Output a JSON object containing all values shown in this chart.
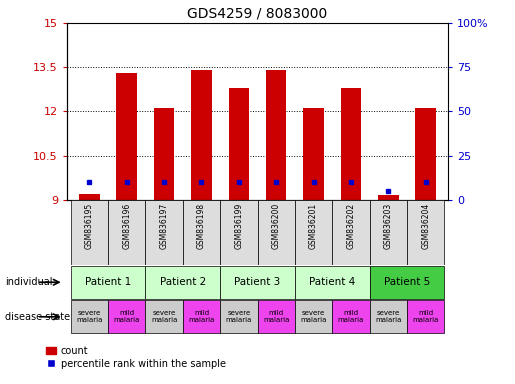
{
  "title": "GDS4259 / 8083000",
  "samples": [
    "GSM836195",
    "GSM836196",
    "GSM836197",
    "GSM836198",
    "GSM836199",
    "GSM836200",
    "GSM836201",
    "GSM836202",
    "GSM836203",
    "GSM836204"
  ],
  "red_values": [
    9.2,
    13.3,
    12.1,
    13.4,
    12.8,
    13.4,
    12.1,
    12.8,
    9.15,
    12.1
  ],
  "blue_percentile": [
    10,
    10,
    10,
    10,
    10,
    10,
    10,
    10,
    5,
    10
  ],
  "ylim_left": [
    9,
    15
  ],
  "ylim_right": [
    0,
    100
  ],
  "yticks_left": [
    9,
    10.5,
    12,
    13.5,
    15
  ],
  "yticks_right": [
    0,
    25,
    50,
    75,
    100
  ],
  "ytick_labels_left": [
    "9",
    "10.5",
    "12",
    "13.5",
    "15"
  ],
  "ytick_labels_right": [
    "0",
    "25",
    "50",
    "75",
    "100%"
  ],
  "patients": [
    {
      "label": "Patient 1",
      "cols": [
        0,
        1
      ],
      "color": "#ccffcc"
    },
    {
      "label": "Patient 2",
      "cols": [
        2,
        3
      ],
      "color": "#ccffcc"
    },
    {
      "label": "Patient 3",
      "cols": [
        4,
        5
      ],
      "color": "#ccffcc"
    },
    {
      "label": "Patient 4",
      "cols": [
        6,
        7
      ],
      "color": "#ccffcc"
    },
    {
      "label": "Patient 5",
      "cols": [
        8,
        9
      ],
      "color": "#44cc44"
    }
  ],
  "disease_states": [
    {
      "label": "severe\nmalaria",
      "col": 0,
      "color": "#cccccc"
    },
    {
      "label": "mild\nmalaria",
      "col": 1,
      "color": "#ee44ee"
    },
    {
      "label": "severe\nmalaria",
      "col": 2,
      "color": "#cccccc"
    },
    {
      "label": "mild\nmalaria",
      "col": 3,
      "color": "#ee44ee"
    },
    {
      "label": "severe\nmalaria",
      "col": 4,
      "color": "#cccccc"
    },
    {
      "label": "mild\nmalaria",
      "col": 5,
      "color": "#ee44ee"
    },
    {
      "label": "severe\nmalaria",
      "col": 6,
      "color": "#cccccc"
    },
    {
      "label": "mild\nmalaria",
      "col": 7,
      "color": "#ee44ee"
    },
    {
      "label": "severe\nmalaria",
      "col": 8,
      "color": "#cccccc"
    },
    {
      "label": "mild\nmalaria",
      "col": 9,
      "color": "#ee44ee"
    }
  ],
  "bar_color": "#cc0000",
  "blue_marker_color": "#0000cc",
  "base_value": 9.0,
  "bar_width": 0.55,
  "left_axis_color": "#cc0000",
  "right_axis_color": "#0000cc",
  "fig_width": 5.15,
  "fig_height": 3.84,
  "sample_label_color": "#888888"
}
